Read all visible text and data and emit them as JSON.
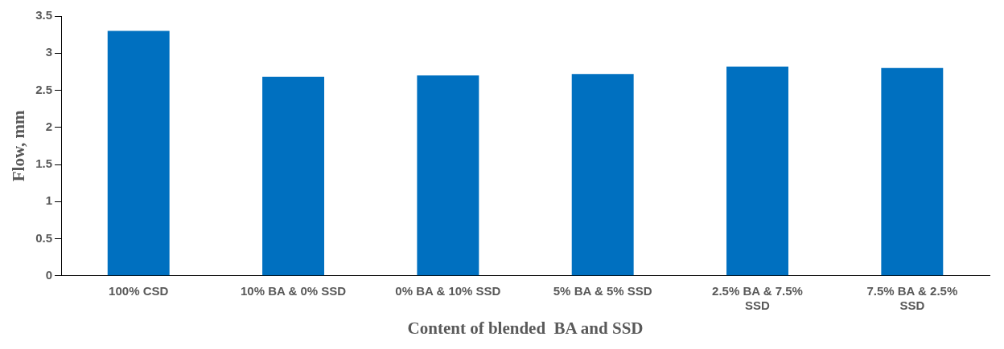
{
  "chart_data": {
    "type": "bar",
    "xlabel": "Content of blended  BA and SSD",
    "ylabel": "Flow, mm",
    "categories": [
      "100% CSD",
      "10% BA & 0% SSD",
      "0% BA & 10% SSD",
      "5% BA & 5% SSD",
      "2.5% BA & 7.5% SSD",
      "7.5% BA & 2.5% SSD"
    ],
    "values": [
      3.3,
      2.68,
      2.7,
      2.72,
      2.82,
      2.8
    ],
    "color": "#0070c0",
    "ylim": [
      0,
      3.5
    ],
    "yticks": [
      0,
      0.5,
      1,
      1.5,
      2,
      2.5,
      3,
      3.5
    ],
    "grid": false,
    "legend": false
  }
}
